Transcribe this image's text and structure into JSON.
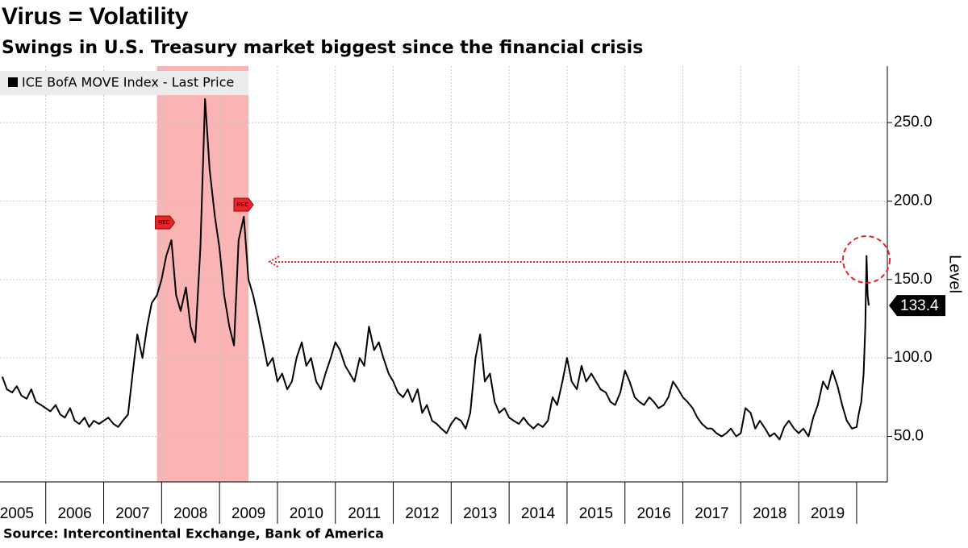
{
  "chart_data": {
    "type": "line",
    "title": "Virus = Volatility",
    "subtitle": "Swings in U.S. Treasury market biggest since the financial crisis",
    "source": "Source:  Intercontinental Exchange, Bank of America",
    "y_axis_label": "Level",
    "legend_position": "top-left",
    "recession": {
      "start": 2007.92,
      "end": 2009.5,
      "label": "REC",
      "color": "#fbb4b4"
    },
    "xlim": [
      2005.21,
      2020.53
    ],
    "ylim": [
      21,
      286
    ],
    "xticks": [
      {
        "value": 2005.5,
        "label": "2005"
      },
      {
        "value": 2006.5,
        "label": "2006"
      },
      {
        "value": 2007.5,
        "label": "2007"
      },
      {
        "value": 2008.5,
        "label": "2008"
      },
      {
        "value": 2009.5,
        "label": "2009"
      },
      {
        "value": 2010.5,
        "label": "2010"
      },
      {
        "value": 2011.5,
        "label": "2011"
      },
      {
        "value": 2012.5,
        "label": "2012"
      },
      {
        "value": 2013.5,
        "label": "2013"
      },
      {
        "value": 2014.5,
        "label": "2014"
      },
      {
        "value": 2015.5,
        "label": "2015"
      },
      {
        "value": 2016.5,
        "label": "2016"
      },
      {
        "value": 2017.5,
        "label": "2017"
      },
      {
        "value": 2018.5,
        "label": "2018"
      },
      {
        "value": 2019.5,
        "label": "2019"
      }
    ],
    "yticks": [
      {
        "value": 50,
        "label": "50.0"
      },
      {
        "value": 100,
        "label": "100.0"
      },
      {
        "value": 150,
        "label": "150.0"
      },
      {
        "value": 200,
        "label": "200.0"
      },
      {
        "value": 250,
        "label": "250.0"
      }
    ],
    "grid": true,
    "series": [
      {
        "name": "ICE BofA MOVE Index - Last Price",
        "color": "#000000",
        "x": [
          2005.25,
          2005.33,
          2005.42,
          2005.5,
          2005.58,
          2005.67,
          2005.75,
          2005.83,
          2005.92,
          2006.0,
          2006.08,
          2006.17,
          2006.25,
          2006.33,
          2006.42,
          2006.5,
          2006.58,
          2006.67,
          2006.75,
          2006.83,
          2006.92,
          2007.0,
          2007.08,
          2007.17,
          2007.25,
          2007.33,
          2007.42,
          2007.5,
          2007.58,
          2007.67,
          2007.75,
          2007.83,
          2007.92,
          2008.0,
          2008.08,
          2008.17,
          2008.25,
          2008.33,
          2008.42,
          2008.5,
          2008.58,
          2008.67,
          2008.75,
          2008.83,
          2008.92,
          2009.0,
          2009.08,
          2009.17,
          2009.25,
          2009.33,
          2009.42,
          2009.5,
          2009.58,
          2009.67,
          2009.75,
          2009.83,
          2009.92,
          2010.0,
          2010.08,
          2010.17,
          2010.25,
          2010.33,
          2010.42,
          2010.5,
          2010.58,
          2010.67,
          2010.75,
          2010.83,
          2010.92,
          2011.0,
          2011.08,
          2011.17,
          2011.25,
          2011.33,
          2011.42,
          2011.5,
          2011.58,
          2011.67,
          2011.75,
          2011.83,
          2011.92,
          2012.0,
          2012.08,
          2012.17,
          2012.25,
          2012.33,
          2012.42,
          2012.5,
          2012.58,
          2012.67,
          2012.75,
          2012.83,
          2012.92,
          2013.0,
          2013.08,
          2013.17,
          2013.25,
          2013.33,
          2013.42,
          2013.5,
          2013.58,
          2013.67,
          2013.75,
          2013.83,
          2013.92,
          2014.0,
          2014.08,
          2014.17,
          2014.25,
          2014.33,
          2014.42,
          2014.5,
          2014.58,
          2014.67,
          2014.75,
          2014.83,
          2014.92,
          2015.0,
          2015.08,
          2015.17,
          2015.25,
          2015.33,
          2015.42,
          2015.5,
          2015.58,
          2015.67,
          2015.75,
          2015.83,
          2015.92,
          2016.0,
          2016.08,
          2016.17,
          2016.25,
          2016.33,
          2016.42,
          2016.5,
          2016.58,
          2016.67,
          2016.75,
          2016.83,
          2016.92,
          2017.0,
          2017.08,
          2017.17,
          2017.25,
          2017.33,
          2017.42,
          2017.5,
          2017.58,
          2017.67,
          2017.75,
          2017.83,
          2017.92,
          2018.0,
          2018.08,
          2018.17,
          2018.25,
          2018.33,
          2018.42,
          2018.5,
          2018.58,
          2018.67,
          2018.75,
          2018.83,
          2018.92,
          2019.0,
          2019.08,
          2019.17,
          2019.25,
          2019.33,
          2019.42,
          2019.5,
          2019.58,
          2019.67,
          2019.75,
          2019.83,
          2019.92,
          2020.0,
          2020.04,
          2020.08,
          2020.12,
          2020.15,
          2020.17,
          2020.19,
          2020.21
        ],
        "values": [
          88,
          80,
          78,
          82,
          76,
          74,
          80,
          72,
          70,
          68,
          66,
          70,
          64,
          62,
          68,
          60,
          58,
          62,
          56,
          60,
          58,
          60,
          62,
          58,
          56,
          60,
          64,
          90,
          115,
          100,
          120,
          135,
          140,
          150,
          165,
          175,
          140,
          130,
          145,
          120,
          110,
          170,
          265,
          220,
          190,
          170,
          140,
          120,
          108,
          175,
          190,
          150,
          140,
          125,
          110,
          95,
          100,
          85,
          90,
          80,
          85,
          100,
          110,
          95,
          100,
          85,
          80,
          90,
          100,
          110,
          105,
          95,
          90,
          85,
          100,
          95,
          120,
          105,
          110,
          100,
          90,
          85,
          78,
          75,
          80,
          72,
          80,
          65,
          70,
          60,
          58,
          55,
          52,
          58,
          62,
          60,
          55,
          65,
          100,
          115,
          85,
          90,
          72,
          65,
          68,
          62,
          60,
          58,
          62,
          58,
          55,
          58,
          56,
          60,
          75,
          70,
          85,
          100,
          85,
          80,
          95,
          85,
          90,
          85,
          80,
          78,
          72,
          70,
          78,
          92,
          85,
          75,
          72,
          70,
          75,
          72,
          68,
          70,
          75,
          85,
          80,
          75,
          72,
          68,
          62,
          58,
          55,
          55,
          52,
          50,
          52,
          55,
          50,
          52,
          68,
          65,
          55,
          60,
          55,
          50,
          52,
          48,
          56,
          60,
          55,
          52,
          55,
          50,
          62,
          70,
          85,
          80,
          92,
          82,
          70,
          60,
          55,
          56,
          65,
          72,
          90,
          120,
          165,
          140,
          133.4
        ]
      }
    ]
  }
}
